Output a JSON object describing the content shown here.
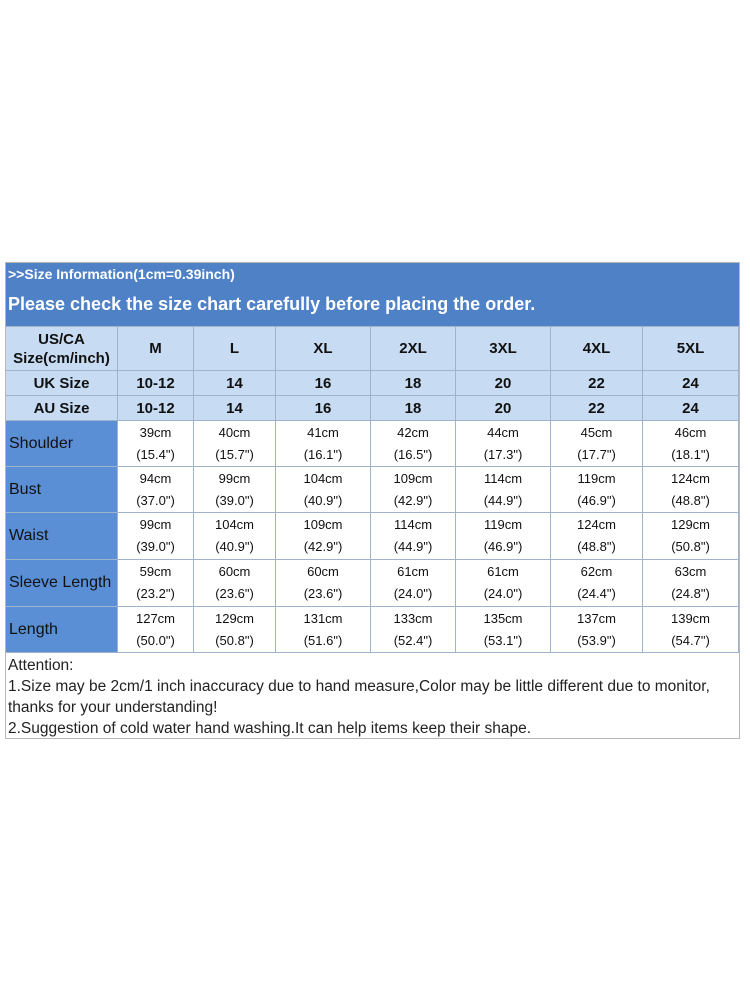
{
  "header": {
    "title": ">>Size Information(1cm=0.39inch)",
    "subtitle": "Please check the size chart carefully before placing the order."
  },
  "table": {
    "columns": [
      "US/CA Size(cm/inch)",
      "M",
      "L",
      "XL",
      "2XL",
      "3XL",
      "4XL",
      "5XL"
    ],
    "size_rows": [
      {
        "label": "UK Size",
        "cells": [
          "10-12",
          "14",
          "16",
          "18",
          "20",
          "22",
          "24"
        ]
      },
      {
        "label": "AU Size",
        "cells": [
          "10-12",
          "14",
          "16",
          "18",
          "20",
          "22",
          "24"
        ]
      }
    ],
    "rows": [
      {
        "label": "Shoulder",
        "cells": [
          [
            "39cm",
            "(15.4\")"
          ],
          [
            "40cm",
            "(15.7\")"
          ],
          [
            "41cm",
            "(16.1\")"
          ],
          [
            "42cm",
            "(16.5\")"
          ],
          [
            "44cm",
            "(17.3\")"
          ],
          [
            "45cm",
            "(17.7\")"
          ],
          [
            "46cm",
            "(18.1\")"
          ]
        ]
      },
      {
        "label": "Bust",
        "cells": [
          [
            "94cm",
            "(37.0\")"
          ],
          [
            "99cm",
            "(39.0\")"
          ],
          [
            "104cm",
            "(40.9\")"
          ],
          [
            "109cm",
            "(42.9\")"
          ],
          [
            "114cm",
            "(44.9\")"
          ],
          [
            "119cm",
            "(46.9\")"
          ],
          [
            "124cm",
            "(48.8\")"
          ]
        ]
      },
      {
        "label": "Waist",
        "cells": [
          [
            "99cm",
            "(39.0\")"
          ],
          [
            "104cm",
            "(40.9\")"
          ],
          [
            "109cm",
            "(42.9\")"
          ],
          [
            "114cm",
            "(44.9\")"
          ],
          [
            "119cm",
            "(46.9\")"
          ],
          [
            "124cm",
            "(48.8\")"
          ],
          [
            "129cm",
            "(50.8\")"
          ]
        ]
      },
      {
        "label": "Sleeve Length",
        "cells": [
          [
            "59cm",
            "(23.2\")"
          ],
          [
            "60cm",
            "(23.6\")"
          ],
          [
            "60cm",
            "(23.6\")"
          ],
          [
            "61cm",
            "(24.0\")"
          ],
          [
            "61cm",
            "(24.0\")"
          ],
          [
            "62cm",
            "(24.4\")"
          ],
          [
            "63cm",
            "(24.8\")"
          ]
        ]
      },
      {
        "label": "Length",
        "cells": [
          [
            "127cm",
            "(50.0\")"
          ],
          [
            "129cm",
            "(50.8\")"
          ],
          [
            "131cm",
            "(51.6\")"
          ],
          [
            "133cm",
            "(52.4\")"
          ],
          [
            "135cm",
            "(53.1\")"
          ],
          [
            "137cm",
            "(53.9\")"
          ],
          [
            "139cm",
            "(54.7\")"
          ]
        ]
      }
    ]
  },
  "notes": [
    "Attention:",
    "1.Size may be 2cm/1 inch inaccuracy due to hand measure,Color may be little different due to monitor, thanks for your understanding!",
    "2.Suggestion of cold water hand washing.It can help items keep their shape."
  ]
}
